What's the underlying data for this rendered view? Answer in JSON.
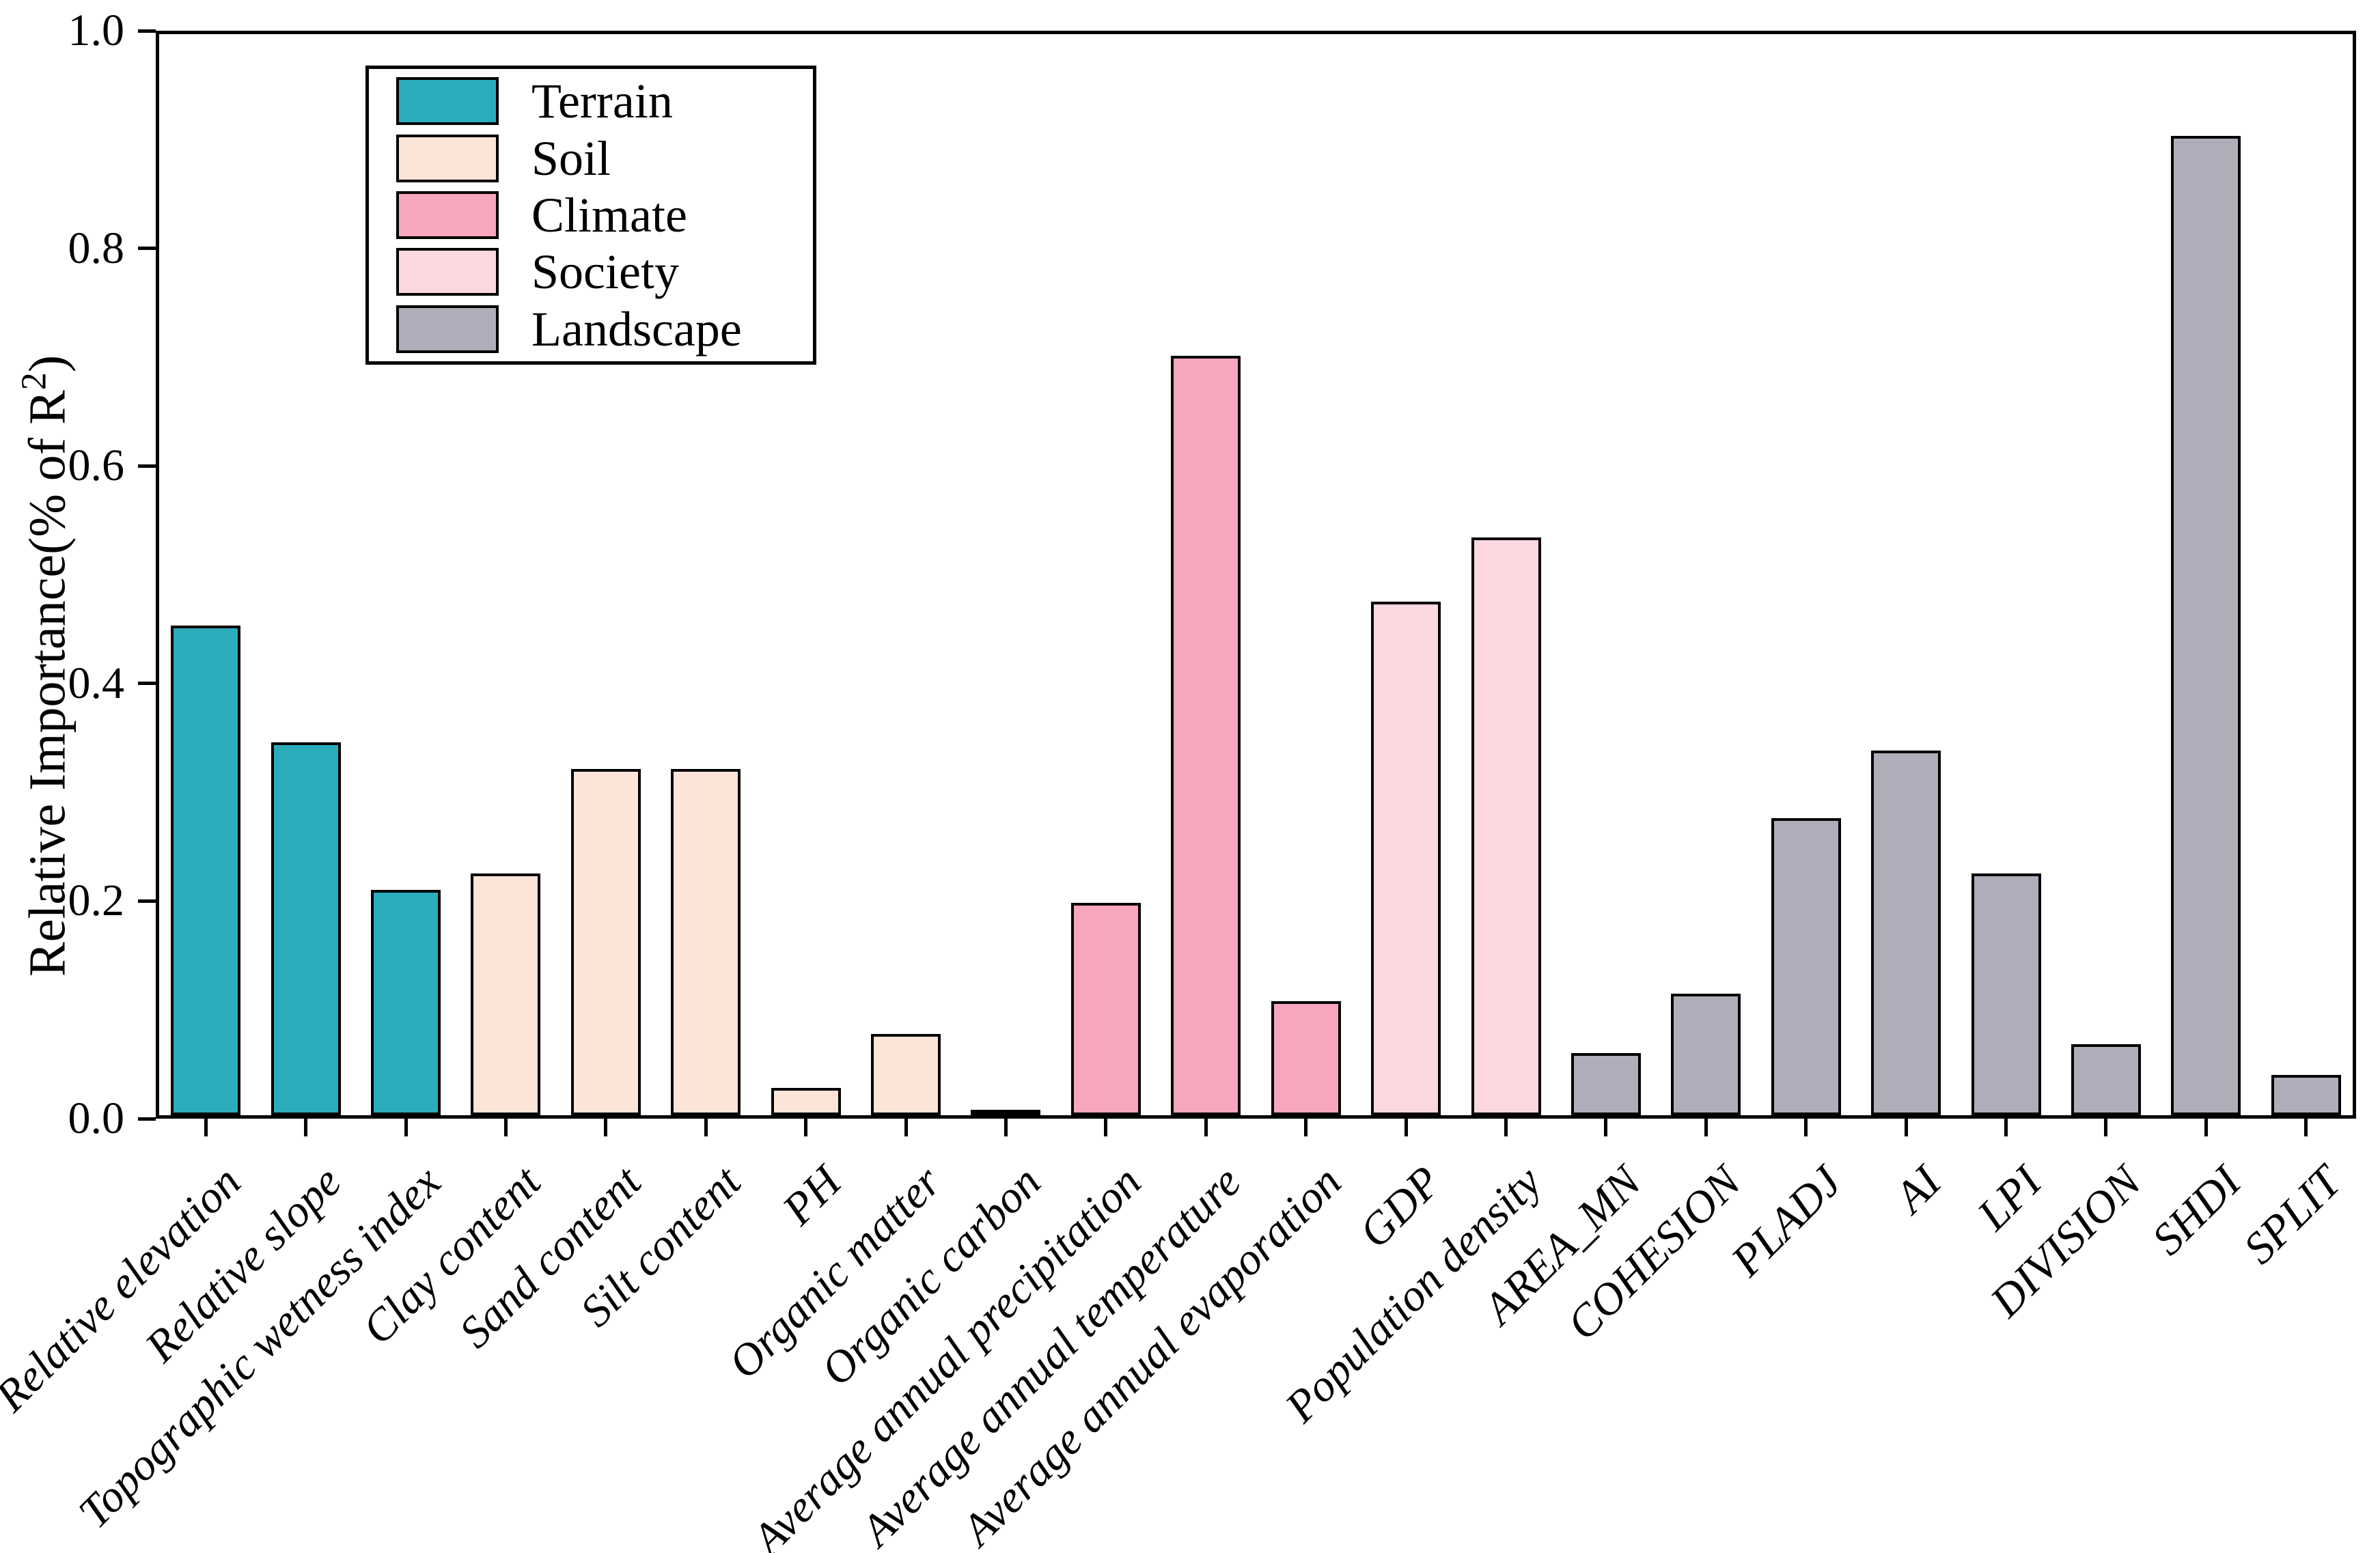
{
  "figure": {
    "background": "#FFFFFF",
    "axis_color": "#000000",
    "bar_edge_color": "#000000"
  },
  "y_axis": {
    "label_prefix": "Relative Importance(% of R",
    "label_sup": "2",
    "label_suffix": ")",
    "tick_labels": [
      "0.0",
      "0.2",
      "0.4",
      "0.6",
      "0.8",
      "1.0"
    ]
  },
  "chart_data": {
    "type": "bar",
    "title": "",
    "xlabel": "",
    "ylabel": "Relative Importance(% of R2)",
    "ylim": [
      0.0,
      1.0
    ],
    "yticks": [
      0.0,
      0.2,
      0.4,
      0.6,
      0.8,
      1.0
    ],
    "grid": false,
    "legend_position": "top-left",
    "groups": [
      {
        "name": "Terrain",
        "color": "#2BACBA"
      },
      {
        "name": "Soil",
        "color": "#FCE4D8"
      },
      {
        "name": "Climate",
        "color": "#F8A6BD"
      },
      {
        "name": "Society",
        "color": "#FDD7E0"
      },
      {
        "name": "Landscape",
        "color": "#B1ACB9"
      }
    ],
    "bars": [
      {
        "category": "Relative elevation",
        "group": "Terrain",
        "value": 0.45
      },
      {
        "category": "Relative slope",
        "group": "Terrain",
        "value": 0.343
      },
      {
        "category": "Topographic wetness index",
        "group": "Terrain",
        "value": 0.207
      },
      {
        "category": "Clay content",
        "group": "Soil",
        "value": 0.222
      },
      {
        "category": "Sand content",
        "group": "Soil",
        "value": 0.318
      },
      {
        "category": "Silt content",
        "group": "Soil",
        "value": 0.318
      },
      {
        "category": "PH",
        "group": "Soil",
        "value": 0.025
      },
      {
        "category": "Organic matter",
        "group": "Soil",
        "value": 0.075
      },
      {
        "category": "Organic carbon",
        "group": "Soil",
        "value": 0.003
      },
      {
        "category": "Average annual precipitation",
        "group": "Climate",
        "value": 0.195
      },
      {
        "category": "Average annual temperature",
        "group": "Climate",
        "value": 0.698
      },
      {
        "category": "Average annual evaporation",
        "group": "Climate",
        "value": 0.105
      },
      {
        "category": "GDP",
        "group": "Society",
        "value": 0.472
      },
      {
        "category": "Population density",
        "group": "Society",
        "value": 0.531
      },
      {
        "category": "AREA_MN",
        "group": "Landscape",
        "value": 0.057
      },
      {
        "category": "COHESION",
        "group": "Landscape",
        "value": 0.112
      },
      {
        "category": "PLADJ",
        "group": "Landscape",
        "value": 0.273
      },
      {
        "category": "AI",
        "group": "Landscape",
        "value": 0.335
      },
      {
        "category": "LPI",
        "group": "Landscape",
        "value": 0.222
      },
      {
        "category": "DIVISION",
        "group": "Landscape",
        "value": 0.065
      },
      {
        "category": "SHDI",
        "group": "Landscape",
        "value": 0.9
      },
      {
        "category": "SPLIT",
        "group": "Landscape",
        "value": 0.037
      }
    ]
  }
}
